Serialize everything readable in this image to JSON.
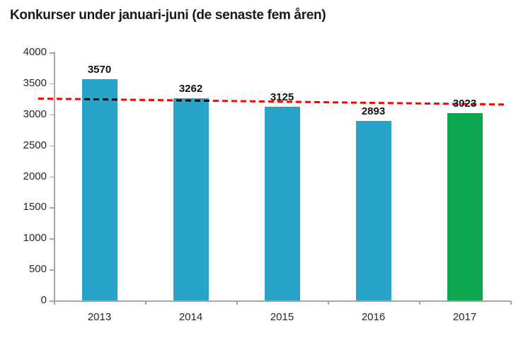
{
  "page": {
    "background": "#ffffff"
  },
  "chart_data": {
    "type": "bar",
    "title": "Konkurser under januari-juni (de senaste fem åren)",
    "categories": [
      "2013",
      "2014",
      "2015",
      "2016",
      "2017"
    ],
    "values": [
      3570,
      3262,
      3125,
      2893,
      3023
    ],
    "bar_colors": [
      "#29A3C8",
      "#29A3C8",
      "#29A3C8",
      "#29A3C8",
      "#0FA750"
    ],
    "show_data_labels": true,
    "xlabel": "",
    "ylabel": "",
    "ylim": [
      0,
      4000
    ],
    "yticks": [
      0,
      500,
      1000,
      1500,
      2000,
      2500,
      3000,
      3500,
      4000
    ],
    "grid": false,
    "legend": "none",
    "trend_line": {
      "style": "dashed",
      "color": "#FE0000",
      "start_value": 3250,
      "end_value": 3155
    },
    "colors": {
      "axis": "#A6A6A6",
      "tick_label": "#262626",
      "data_label": "#111111",
      "title": "#1A1A1A"
    }
  }
}
